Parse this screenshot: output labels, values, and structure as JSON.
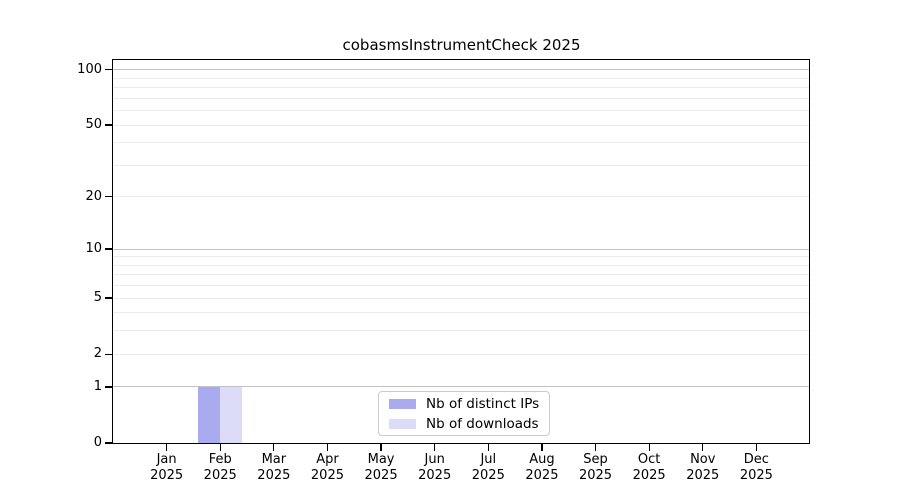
{
  "figure": {
    "title": "cobasmsInstrumentCheck 2025",
    "background_color": "#ffffff"
  },
  "chart_data": {
    "type": "bar",
    "title": "cobasmsInstrumentCheck 2025",
    "x_categories": [
      {
        "month": "Jan",
        "year": "2025"
      },
      {
        "month": "Feb",
        "year": "2025"
      },
      {
        "month": "Mar",
        "year": "2025"
      },
      {
        "month": "Apr",
        "year": "2025"
      },
      {
        "month": "May",
        "year": "2025"
      },
      {
        "month": "Jun",
        "year": "2025"
      },
      {
        "month": "Jul",
        "year": "2025"
      },
      {
        "month": "Aug",
        "year": "2025"
      },
      {
        "month": "Sep",
        "year": "2025"
      },
      {
        "month": "Oct",
        "year": "2025"
      },
      {
        "month": "Nov",
        "year": "2025"
      },
      {
        "month": "Dec",
        "year": "2025"
      }
    ],
    "series": [
      {
        "name": "Nb of distinct IPs",
        "color": "#aaaaee",
        "values": [
          0,
          1,
          0,
          0,
          0,
          0,
          0,
          0,
          0,
          0,
          0,
          0
        ]
      },
      {
        "name": "Nb of downloads",
        "color": "#dcdcf9",
        "values": [
          0,
          1,
          0,
          0,
          0,
          0,
          0,
          0,
          0,
          0,
          0,
          0
        ]
      }
    ],
    "y_axis": {
      "scale": "log1p",
      "tick_values": [
        0,
        1,
        2,
        5,
        10,
        20,
        50,
        100
      ],
      "tick_labels": [
        "0",
        "1",
        "2",
        "5",
        "10",
        "20",
        "50",
        "100"
      ],
      "major_gridlines": [
        1,
        10,
        100
      ],
      "minor_gridlines": [
        2,
        3,
        4,
        5,
        6,
        7,
        8,
        9,
        20,
        30,
        40,
        50,
        60,
        70,
        80,
        90
      ],
      "range": [
        0,
        113
      ]
    },
    "xlabel": "",
    "ylabel": "",
    "grid": true,
    "legend": {
      "position": "lower center",
      "entries": [
        "Nb of distinct IPs",
        "Nb of downloads"
      ]
    }
  },
  "colors": {
    "grid_major": "#c3c3c3",
    "grid_minor": "#ececec",
    "axis": "#000000",
    "legend_border": "#cccccc",
    "text": "#000000"
  }
}
